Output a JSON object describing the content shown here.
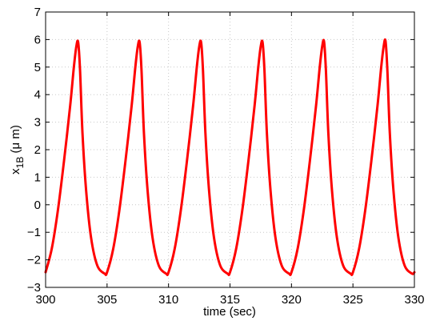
{
  "chart_data": {
    "type": "line",
    "title": "",
    "xlabel": "time (sec)",
    "ylabel": {
      "main": "x",
      "sub": "1B",
      "unit": " (μ m)"
    },
    "xlim": [
      300,
      330
    ],
    "ylim": [
      -3,
      7
    ],
    "xticks": [
      300,
      305,
      310,
      315,
      320,
      325,
      330
    ],
    "yticks": [
      -3,
      -2,
      -1,
      0,
      1,
      2,
      3,
      4,
      5,
      6,
      7
    ],
    "grid": true,
    "legend": "none",
    "series": [
      {
        "color": "#ff0000",
        "period": 5,
        "x": [
          300.0,
          300.5,
          301.0,
          301.5,
          302.0,
          302.3,
          302.5,
          302.65,
          302.8,
          303.0,
          303.3,
          303.7,
          304.2,
          304.8,
          305.0,
          305.5,
          306.0,
          306.5,
          307.0,
          307.3,
          307.5,
          307.65,
          307.8,
          308.0,
          308.3,
          308.7,
          309.2,
          309.8,
          310.0,
          310.5,
          311.0,
          311.5,
          312.0,
          312.3,
          312.5,
          312.65,
          312.8,
          313.0,
          313.3,
          313.7,
          314.2,
          314.8,
          315.0,
          315.5,
          316.0,
          316.5,
          317.0,
          317.3,
          317.5,
          317.65,
          317.8,
          318.0,
          318.3,
          318.7,
          319.2,
          319.8,
          320.0,
          320.5,
          321.0,
          321.5,
          322.0,
          322.3,
          322.5,
          322.65,
          322.8,
          323.0,
          323.3,
          323.7,
          324.2,
          324.8,
          325.0,
          325.5,
          326.0,
          326.5,
          327.0,
          327.3,
          327.5,
          327.65,
          327.8,
          328.0,
          328.3,
          328.7,
          329.2,
          329.8,
          330.0
        ],
        "y": [
          -2.45,
          -1.6,
          -0.2,
          1.6,
          3.6,
          5.0,
          5.75,
          5.9,
          4.9,
          2.6,
          0.5,
          -1.2,
          -2.2,
          -2.5,
          -2.45,
          -1.6,
          -0.2,
          1.6,
          3.6,
          5.0,
          5.75,
          5.9,
          4.9,
          2.6,
          0.5,
          -1.2,
          -2.2,
          -2.5,
          -2.45,
          -1.6,
          -0.2,
          1.6,
          3.6,
          5.0,
          5.75,
          5.9,
          4.9,
          2.6,
          0.5,
          -1.2,
          -2.2,
          -2.5,
          -2.45,
          -1.6,
          -0.2,
          1.6,
          3.6,
          5.0,
          5.75,
          5.9,
          4.9,
          2.6,
          0.5,
          -1.2,
          -2.2,
          -2.5,
          -2.45,
          -1.6,
          -0.2,
          1.6,
          3.6,
          5.0,
          5.75,
          5.93,
          4.9,
          2.6,
          0.5,
          -1.2,
          -2.2,
          -2.5,
          -2.45,
          -1.6,
          -0.2,
          1.6,
          3.6,
          5.0,
          5.75,
          5.95,
          4.9,
          2.6,
          0.5,
          -1.2,
          -2.2,
          -2.5,
          -2.45
        ]
      }
    ]
  }
}
